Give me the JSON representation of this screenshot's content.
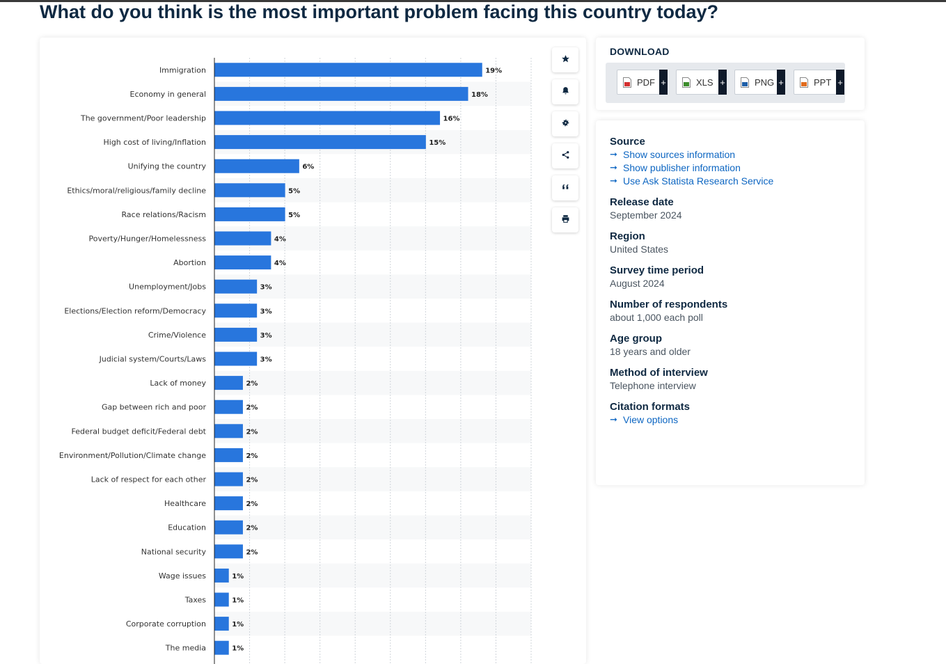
{
  "page": {
    "title": "What do you think is the most important problem facing this country today?"
  },
  "toolbar": [
    {
      "icon": "star-icon",
      "name": "favorite"
    },
    {
      "icon": "bell-icon",
      "name": "notification"
    },
    {
      "icon": "gear-icon",
      "name": "settings"
    },
    {
      "icon": "share-icon",
      "name": "share"
    },
    {
      "icon": "quote-icon",
      "name": "cite"
    },
    {
      "icon": "print-icon",
      "name": "print"
    }
  ],
  "download": {
    "heading": "DOWNLOAD",
    "buttons": [
      {
        "label": "PDF",
        "plus": "+",
        "color": "#d32f2f"
      },
      {
        "label": "XLS",
        "plus": "+",
        "color": "#3c8c2c"
      },
      {
        "label": "PNG",
        "plus": "+",
        "color": "#1f5fa8"
      },
      {
        "label": "PPT",
        "plus": "+",
        "color": "#e06b1e"
      }
    ]
  },
  "info": {
    "source_heading": "Source",
    "source_links": [
      "Show sources information",
      "Show publisher information",
      "Use Ask Statista Research Service"
    ],
    "release_heading": "Release date",
    "release_value": "September 2024",
    "region_heading": "Region",
    "region_value": "United States",
    "survey_heading": "Survey time period",
    "survey_value": "August 2024",
    "respondents_heading": "Number of respondents",
    "respondents_value": "about 1,000 each poll",
    "age_heading": "Age group",
    "age_value": "18 years and older",
    "method_heading": "Method of interview",
    "method_value": "Telephone interview",
    "citation_heading": "Citation formats",
    "citation_link": "View options"
  },
  "colors": {
    "bar": "#2876dd",
    "link": "#0d66c2",
    "title": "#0f2942"
  },
  "chart_data": {
    "type": "bar",
    "orientation": "horizontal",
    "categories": [
      "Immigration",
      "Economy in general",
      "The government/Poor leadership",
      "High cost of living/Inflation",
      "Unifying the country",
      "Ethics/moral/religious/family decline",
      "Race relations/Racism",
      "Poverty/Hunger/Homelessness",
      "Abortion",
      "Unemployment/Jobs",
      "Elections/Election reform/Democracy",
      "Crime/Violence",
      "Judicial system/Courts/Laws",
      "Lack of money",
      "Gap between rich and poor",
      "Federal budget deficit/Federal debt",
      "Environment/Pollution/Climate change",
      "Lack of respect for each other",
      "Healthcare",
      "Education",
      "National security",
      "Wage issues",
      "Taxes",
      "Corporate corruption",
      "The media"
    ],
    "values": [
      19,
      18,
      16,
      15,
      6,
      5,
      5,
      4,
      4,
      3,
      3,
      3,
      3,
      2,
      2,
      2,
      2,
      2,
      2,
      2,
      2,
      1,
      1,
      1,
      1
    ],
    "value_labels": [
      "19%",
      "18%",
      "16%",
      "15%",
      "6%",
      "5%",
      "5%",
      "4%",
      "4%",
      "3%",
      "3%",
      "3%",
      "3%",
      "2%",
      "2%",
      "2%",
      "2%",
      "2%",
      "2%",
      "2%",
      "2%",
      "1%",
      "1%",
      "1%",
      "1%"
    ],
    "xlim": [
      0,
      22.5
    ],
    "grid": true
  }
}
